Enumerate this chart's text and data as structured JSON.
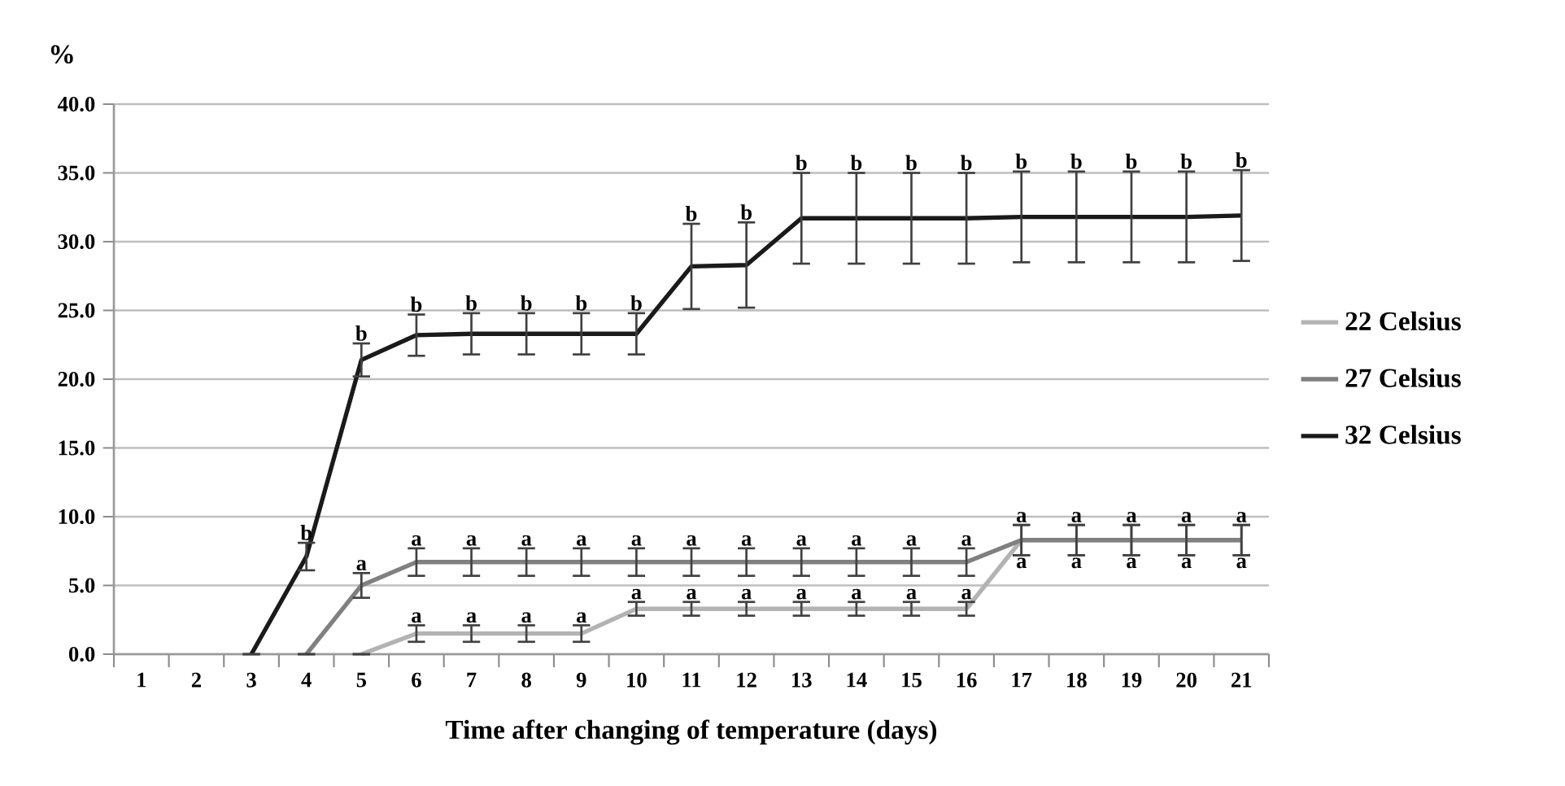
{
  "chart_data": {
    "type": "line",
    "ylabel": "%",
    "xlabel": "Time after changing of temperature (days)",
    "categories": [
      "1",
      "2",
      "3",
      "4",
      "5",
      "6",
      "7",
      "8",
      "9",
      "10",
      "11",
      "12",
      "13",
      "14",
      "15",
      "16",
      "17",
      "18",
      "19",
      "20",
      "21"
    ],
    "series": [
      {
        "name": "22 Celsius",
        "color": "#b3b3b3",
        "values": [
          null,
          null,
          null,
          null,
          0,
          1.5,
          1.5,
          1.5,
          1.5,
          3.3,
          3.3,
          3.3,
          3.3,
          3.3,
          3.3,
          3.3,
          8.3,
          8.3,
          8.3,
          8.3,
          8.3
        ],
        "errors": [
          null,
          null,
          null,
          null,
          null,
          0.6,
          0.6,
          0.6,
          0.6,
          0.5,
          0.5,
          0.5,
          0.5,
          0.5,
          0.5,
          0.5,
          1.1,
          1.1,
          1.1,
          1.1,
          1.1
        ]
      },
      {
        "name": "27 Celsius",
        "color": "#808080",
        "values": [
          null,
          null,
          null,
          0,
          5.0,
          6.7,
          6.7,
          6.7,
          6.7,
          6.7,
          6.7,
          6.7,
          6.7,
          6.7,
          6.7,
          6.7,
          8.3,
          8.3,
          8.3,
          8.3,
          8.3
        ],
        "errors": [
          null,
          null,
          null,
          null,
          0.9,
          1.0,
          1.0,
          1.0,
          1.0,
          1.0,
          1.0,
          1.0,
          1.0,
          1.0,
          1.0,
          1.0,
          1.1,
          1.1,
          1.1,
          1.1,
          1.1
        ]
      },
      {
        "name": "32 Celsius",
        "color": "#1a1a1a",
        "values": [
          null,
          null,
          0,
          7.1,
          21.4,
          23.2,
          23.3,
          23.3,
          23.3,
          23.3,
          28.2,
          28.3,
          31.7,
          31.7,
          31.7,
          31.7,
          31.8,
          31.8,
          31.8,
          31.8,
          31.9
        ],
        "errors": [
          null,
          null,
          null,
          1.0,
          1.2,
          1.5,
          1.5,
          1.5,
          1.5,
          1.5,
          3.1,
          3.1,
          3.3,
          3.3,
          3.3,
          3.3,
          3.3,
          3.3,
          3.3,
          3.3,
          3.3
        ]
      }
    ],
    "ylim": [
      0,
      40
    ],
    "yticks": [
      {
        "value": 0,
        "label": "0.0"
      },
      {
        "value": 5,
        "label": "5.0"
      },
      {
        "value": 10,
        "label": "10.0"
      },
      {
        "value": 15,
        "label": "15.0"
      },
      {
        "value": 20,
        "label": "20.0"
      },
      {
        "value": 25,
        "label": "25.0"
      },
      {
        "value": 30,
        "label": "30.0"
      },
      {
        "value": 35,
        "label": "35.0"
      },
      {
        "value": 40,
        "label": "40.0"
      }
    ],
    "grid": "y",
    "legend": "right",
    "marker": "none",
    "line_style": "solid",
    "annotations": [
      {
        "text": "b",
        "x": "4",
        "y": 8.1
      },
      {
        "text": "b",
        "x": "5",
        "y": 22.6
      },
      {
        "text": "b",
        "x": "6",
        "y": 24.7
      },
      {
        "text": "b",
        "x": "7",
        "y": 24.8
      },
      {
        "text": "b",
        "x": "8",
        "y": 24.8
      },
      {
        "text": "b",
        "x": "9",
        "y": 24.8
      },
      {
        "text": "b",
        "x": "10",
        "y": 24.8
      },
      {
        "text": "b",
        "x": "11",
        "y": 31.3
      },
      {
        "text": "b",
        "x": "12",
        "y": 31.4
      },
      {
        "text": "b",
        "x": "13",
        "y": 35.0
      },
      {
        "text": "b",
        "x": "14",
        "y": 35.0
      },
      {
        "text": "b",
        "x": "15",
        "y": 35.0
      },
      {
        "text": "b",
        "x": "16",
        "y": 35.0
      },
      {
        "text": "b",
        "x": "17",
        "y": 35.1
      },
      {
        "text": "b",
        "x": "18",
        "y": 35.1
      },
      {
        "text": "b",
        "x": "19",
        "y": 35.1
      },
      {
        "text": "b",
        "x": "20",
        "y": 35.1
      },
      {
        "text": "b",
        "x": "21",
        "y": 35.2
      },
      {
        "text": "a",
        "x": "5",
        "y": 5.9
      },
      {
        "text": "a",
        "x": "6",
        "y": 7.7
      },
      {
        "text": "a",
        "x": "7",
        "y": 7.7
      },
      {
        "text": "a",
        "x": "8",
        "y": 7.7
      },
      {
        "text": "a",
        "x": "9",
        "y": 7.7
      },
      {
        "text": "a",
        "x": "10",
        "y": 7.7
      },
      {
        "text": "a",
        "x": "11",
        "y": 7.7
      },
      {
        "text": "a",
        "x": "12",
        "y": 7.7
      },
      {
        "text": "a",
        "x": "13",
        "y": 7.7
      },
      {
        "text": "a",
        "x": "14",
        "y": 7.7
      },
      {
        "text": "a",
        "x": "15",
        "y": 7.7
      },
      {
        "text": "a",
        "x": "16",
        "y": 7.7
      },
      {
        "text": "a",
        "x": "17",
        "y": 9.4
      },
      {
        "text": "a",
        "x": "18",
        "y": 9.4
      },
      {
        "text": "a",
        "x": "19",
        "y": 9.4
      },
      {
        "text": "a",
        "x": "20",
        "y": 9.4
      },
      {
        "text": "a",
        "x": "21",
        "y": 9.4
      },
      {
        "text": "a",
        "x": "6",
        "y": 2.1
      },
      {
        "text": "a",
        "x": "7",
        "y": 2.1
      },
      {
        "text": "a",
        "x": "8",
        "y": 2.1
      },
      {
        "text": "a",
        "x": "9",
        "y": 2.1
      },
      {
        "text": "a",
        "x": "10",
        "y": 3.8
      },
      {
        "text": "a",
        "x": "11",
        "y": 3.8
      },
      {
        "text": "a",
        "x": "12",
        "y": 3.8
      },
      {
        "text": "a",
        "x": "13",
        "y": 3.8
      },
      {
        "text": "a",
        "x": "14",
        "y": 3.8
      },
      {
        "text": "a",
        "x": "15",
        "y": 3.8
      },
      {
        "text": "a",
        "x": "16",
        "y": 3.8
      },
      {
        "text": "a",
        "x": "17",
        "y": 7.2
      },
      {
        "text": "a",
        "x": "18",
        "y": 7.2
      },
      {
        "text": "a",
        "x": "19",
        "y": 7.2
      },
      {
        "text": "a",
        "x": "20",
        "y": 7.2
      },
      {
        "text": "a",
        "x": "21",
        "y": 7.2
      }
    ]
  }
}
